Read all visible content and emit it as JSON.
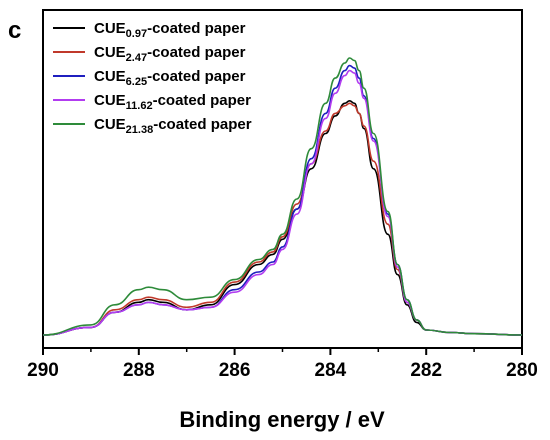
{
  "panel_label": "c",
  "colors": {
    "axis": "#000000"
  },
  "chart_data": {
    "type": "line",
    "title": "",
    "xlabel": "Binding energy / eV",
    "ylabel": "",
    "xlim": [
      290,
      280
    ],
    "x_reversed": true,
    "xticks": [
      290,
      288,
      286,
      284,
      282,
      280
    ],
    "y_ticks_shown": false,
    "grid": false,
    "legend_position": "top-left",
    "series": [
      {
        "name_base": "CUE",
        "name_sub": "0.97",
        "name_suffix": "-coated paper",
        "color": "#000000",
        "x": [
          290,
          289,
          288.5,
          288,
          287.8,
          287.5,
          287,
          286.5,
          286,
          285.5,
          285.2,
          285,
          284.7,
          284.4,
          284.1,
          283.9,
          283.7,
          283.6,
          283.5,
          283.4,
          283.3,
          283.1,
          282.8,
          282.6,
          282.4,
          282.2,
          282,
          281.5,
          281,
          280
        ],
        "y": [
          0.0,
          0.03,
          0.09,
          0.13,
          0.14,
          0.13,
          0.1,
          0.12,
          0.2,
          0.28,
          0.32,
          0.38,
          0.5,
          0.66,
          0.8,
          0.87,
          0.92,
          0.93,
          0.92,
          0.88,
          0.82,
          0.66,
          0.4,
          0.24,
          0.12,
          0.05,
          0.02,
          0.01,
          0.005,
          0.0
        ]
      },
      {
        "name_base": "CUE",
        "name_sub": "2.47",
        "name_suffix": "-coated paper",
        "color": "#c0392b",
        "x": [
          290,
          289,
          288.5,
          288,
          287.8,
          287.5,
          287,
          286.5,
          286,
          285.5,
          285.2,
          285,
          284.7,
          284.4,
          284.1,
          283.9,
          283.7,
          283.6,
          283.5,
          283.4,
          283.3,
          283.1,
          282.8,
          282.6,
          282.4,
          282.2,
          282,
          281.5,
          281,
          280
        ],
        "y": [
          0.0,
          0.03,
          0.1,
          0.14,
          0.15,
          0.14,
          0.11,
          0.13,
          0.21,
          0.29,
          0.33,
          0.39,
          0.52,
          0.68,
          0.81,
          0.88,
          0.91,
          0.92,
          0.91,
          0.88,
          0.83,
          0.69,
          0.44,
          0.26,
          0.13,
          0.06,
          0.02,
          0.01,
          0.005,
          0.0
        ]
      },
      {
        "name_base": "CUE",
        "name_sub": "6.25",
        "name_suffix": "-coated paper",
        "color": "#1f1fbf",
        "x": [
          290,
          289,
          288.5,
          288,
          287.8,
          287.5,
          287,
          286.5,
          286,
          285.5,
          285.2,
          285,
          284.7,
          284.4,
          284.1,
          283.9,
          283.7,
          283.6,
          283.5,
          283.4,
          283.3,
          283.1,
          282.8,
          282.6,
          282.4,
          282.2,
          282,
          281.5,
          281,
          280
        ],
        "y": [
          0.0,
          0.03,
          0.09,
          0.12,
          0.13,
          0.12,
          0.1,
          0.11,
          0.18,
          0.25,
          0.29,
          0.35,
          0.5,
          0.7,
          0.88,
          0.98,
          1.05,
          1.07,
          1.06,
          1.02,
          0.95,
          0.78,
          0.48,
          0.28,
          0.14,
          0.06,
          0.02,
          0.01,
          0.005,
          0.0
        ]
      },
      {
        "name_base": "CUE",
        "name_sub": "11.62",
        "name_suffix": "-coated paper",
        "color": "#b23cf0",
        "x": [
          290,
          289,
          288.5,
          288,
          287.8,
          287.5,
          287,
          286.5,
          286,
          285.5,
          285.2,
          285,
          284.7,
          284.4,
          284.1,
          283.9,
          283.7,
          283.6,
          283.5,
          283.4,
          283.3,
          283.1,
          282.8,
          282.6,
          282.4,
          282.2,
          282,
          281.5,
          281,
          280
        ],
        "y": [
          0.0,
          0.03,
          0.09,
          0.12,
          0.13,
          0.12,
          0.1,
          0.11,
          0.17,
          0.24,
          0.28,
          0.34,
          0.48,
          0.68,
          0.86,
          0.96,
          1.03,
          1.05,
          1.04,
          1.0,
          0.94,
          0.77,
          0.47,
          0.27,
          0.13,
          0.06,
          0.02,
          0.01,
          0.005,
          0.0
        ]
      },
      {
        "name_base": "CUE",
        "name_sub": "21.38",
        "name_suffix": "-coated paper",
        "color": "#2e8b3a",
        "x": [
          290,
          289,
          288.5,
          288,
          287.8,
          287.5,
          287,
          286.5,
          286,
          285.5,
          285.2,
          285,
          284.7,
          284.4,
          284.1,
          283.9,
          283.7,
          283.6,
          283.5,
          283.4,
          283.3,
          283.1,
          282.8,
          282.6,
          282.4,
          282.2,
          282,
          281.5,
          281,
          280
        ],
        "y": [
          0.0,
          0.04,
          0.12,
          0.18,
          0.19,
          0.18,
          0.14,
          0.15,
          0.22,
          0.3,
          0.34,
          0.4,
          0.54,
          0.74,
          0.92,
          1.02,
          1.08,
          1.1,
          1.09,
          1.05,
          0.98,
          0.8,
          0.49,
          0.28,
          0.14,
          0.06,
          0.02,
          0.01,
          0.005,
          0.0
        ]
      }
    ]
  }
}
